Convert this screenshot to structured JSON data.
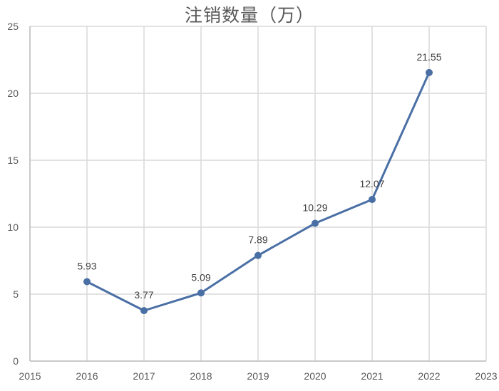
{
  "chart_data": {
    "type": "line",
    "title": "注销数量（万）",
    "xlabel": "",
    "ylabel": "",
    "x_ticks": [
      "2015",
      "2016",
      "2017",
      "2018",
      "2019",
      "2020",
      "2021",
      "2022",
      "2023"
    ],
    "y_ticks": [
      "0",
      "5",
      "10",
      "15",
      "20",
      "25"
    ],
    "xlim": [
      2015,
      2023
    ],
    "ylim": [
      0,
      25
    ],
    "grid": {
      "vertical": true,
      "horizontal": true,
      "color": "#d9d9d9"
    },
    "legend": null,
    "series": [
      {
        "name": "注销数量（万）",
        "color": "#4a6fa5",
        "marker": "circle",
        "x": [
          2016,
          2017,
          2018,
          2019,
          2020,
          2021,
          2022
        ],
        "values": [
          5.93,
          3.77,
          5.09,
          7.89,
          10.29,
          12.07,
          21.55
        ],
        "labels": [
          "5.93",
          "3.77",
          "5.09",
          "7.89",
          "10.29",
          "12.07",
          "21.55"
        ]
      }
    ]
  }
}
